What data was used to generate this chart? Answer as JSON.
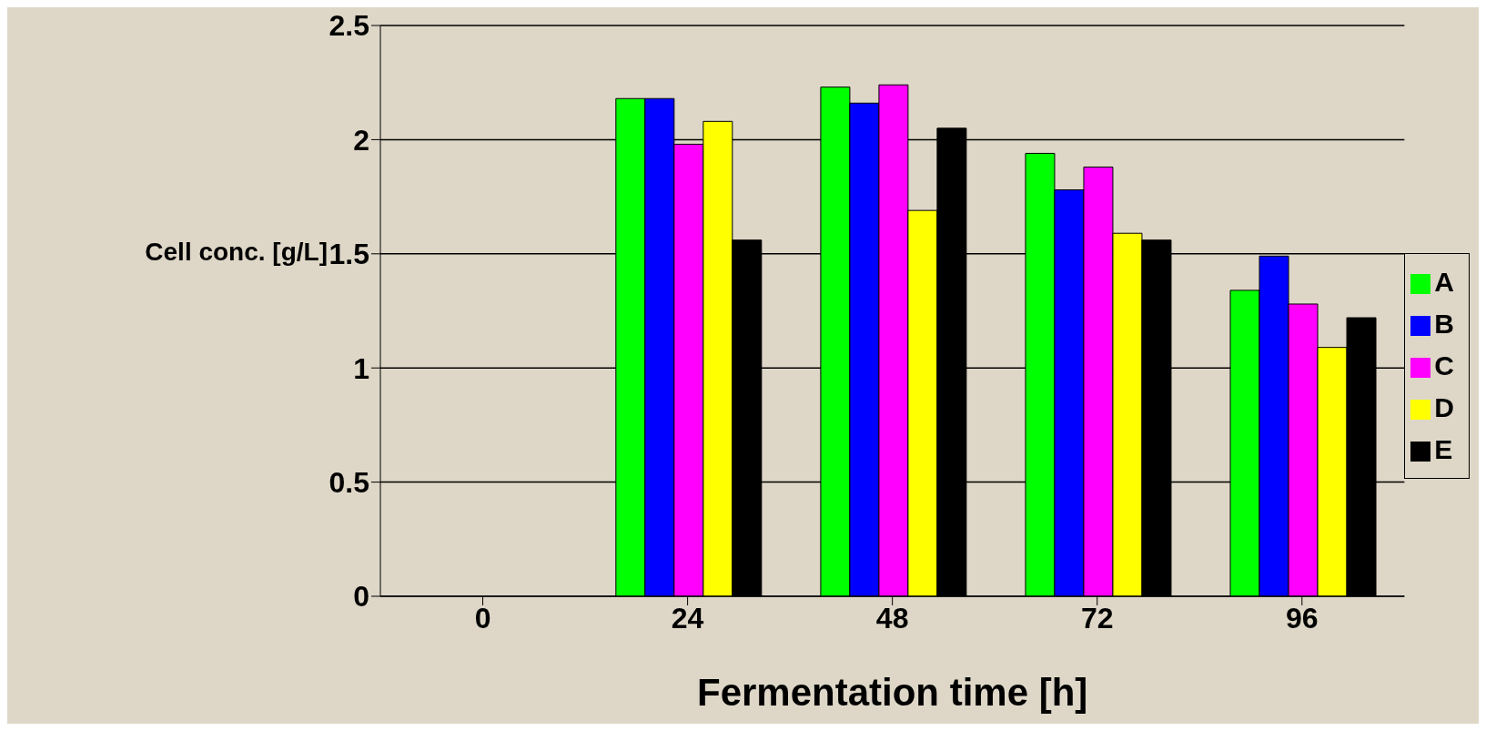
{
  "chart_data": {
    "type": "bar",
    "xlabel": "Fermentation time [h]",
    "ylabel": "Cell conc. [g/L]",
    "categories": [
      "0",
      "24",
      "48",
      "72",
      "96"
    ],
    "series": [
      {
        "name": "A",
        "color": "#00ff00",
        "values": [
          0,
          2.18,
          2.23,
          1.94,
          1.34
        ]
      },
      {
        "name": "B",
        "color": "#0000ff",
        "values": [
          0,
          2.18,
          2.16,
          1.78,
          1.49
        ]
      },
      {
        "name": "C",
        "color": "#ff00ff",
        "values": [
          0,
          1.98,
          2.24,
          1.88,
          1.28
        ]
      },
      {
        "name": "D",
        "color": "#ffff00",
        "values": [
          0,
          2.08,
          1.69,
          1.59,
          1.09
        ]
      },
      {
        "name": "E",
        "color": "#000000",
        "values": [
          0,
          1.56,
          2.05,
          1.56,
          1.22
        ]
      }
    ],
    "ylim": [
      0,
      2.5
    ],
    "yticks": [
      0,
      0.5,
      1,
      1.5,
      2,
      2.5
    ],
    "grid": "y",
    "legend": "right"
  }
}
